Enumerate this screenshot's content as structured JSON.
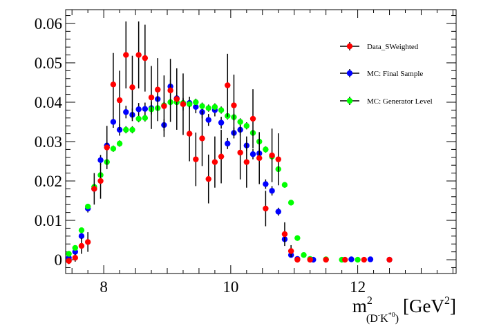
{
  "chart_data": {
    "type": "scatter",
    "title": "",
    "xlabel": {
      "base": "m",
      "superscript": "2",
      "subscript": "(D",
      "subscript_sup1": "-",
      "subscript_mid": "K",
      "subscript_sup2": "*0",
      "subscript_end": ")",
      "unit": "[GeV",
      "unit_sup": "2",
      "unit_end": "]"
    },
    "ylabel": "",
    "xlim": [
      7.4,
      13.55
    ],
    "ylim": [
      -0.0035,
      0.0635
    ],
    "x_ticks": [
      8,
      10,
      12
    ],
    "x_tick_labels": [
      "8",
      "10",
      "12"
    ],
    "y_ticks": [
      0,
      0.01,
      0.02,
      0.03,
      0.04,
      0.05,
      0.06
    ],
    "y_tick_labels": [
      "0",
      "0.01",
      "0.02",
      "0.03",
      "0.04",
      "0.05",
      "0.06"
    ],
    "legend_position": "top-right",
    "grid": false,
    "series": [
      {
        "name": "Data_SWeighted",
        "color": "#ff0000",
        "points": [
          {
            "x": 7.45,
            "y": -0.0003,
            "err": 0.0008
          },
          {
            "x": 7.55,
            "y": 0.0005,
            "err": 0.001
          },
          {
            "x": 7.65,
            "y": 0.0035,
            "err": 0.002
          },
          {
            "x": 7.75,
            "y": 0.0045,
            "err": 0.0025
          },
          {
            "x": 7.85,
            "y": 0.018,
            "err": 0.004
          },
          {
            "x": 7.95,
            "y": 0.02,
            "err": 0.0045
          },
          {
            "x": 8.05,
            "y": 0.0285,
            "err": 0.0055
          },
          {
            "x": 8.15,
            "y": 0.0445,
            "err": 0.008
          },
          {
            "x": 8.25,
            "y": 0.0405,
            "err": 0.0075
          },
          {
            "x": 8.35,
            "y": 0.052,
            "err": 0.0085
          },
          {
            "x": 8.45,
            "y": 0.0438,
            "err": 0.008
          },
          {
            "x": 8.55,
            "y": 0.052,
            "err": 0.0085
          },
          {
            "x": 8.65,
            "y": 0.0512,
            "err": 0.0085
          },
          {
            "x": 8.75,
            "y": 0.0412,
            "err": 0.008
          },
          {
            "x": 8.85,
            "y": 0.0432,
            "err": 0.008
          },
          {
            "x": 8.95,
            "y": 0.039,
            "err": 0.0078
          },
          {
            "x": 9.05,
            "y": 0.043,
            "err": 0.008
          },
          {
            "x": 9.15,
            "y": 0.0408,
            "err": 0.0078
          },
          {
            "x": 9.25,
            "y": 0.0395,
            "err": 0.0078
          },
          {
            "x": 9.35,
            "y": 0.032,
            "err": 0.007
          },
          {
            "x": 9.45,
            "y": 0.0255,
            "err": 0.0068
          },
          {
            "x": 9.55,
            "y": 0.0308,
            "err": 0.007
          },
          {
            "x": 9.65,
            "y": 0.0205,
            "err": 0.0062
          },
          {
            "x": 9.75,
            "y": 0.0248,
            "err": 0.0065
          },
          {
            "x": 9.85,
            "y": 0.0262,
            "err": 0.0068
          },
          {
            "x": 9.95,
            "y": 0.0443,
            "err": 0.008
          },
          {
            "x": 10.05,
            "y": 0.0392,
            "err": 0.0078
          },
          {
            "x": 10.15,
            "y": 0.0272,
            "err": 0.0068
          },
          {
            "x": 10.25,
            "y": 0.0248,
            "err": 0.0065
          },
          {
            "x": 10.35,
            "y": 0.0358,
            "err": 0.0075
          },
          {
            "x": 10.45,
            "y": 0.0258,
            "err": 0.0066
          },
          {
            "x": 10.55,
            "y": 0.013,
            "err": 0.0045
          },
          {
            "x": 10.65,
            "y": 0.0265,
            "err": 0.0068
          },
          {
            "x": 10.75,
            "y": 0.0255,
            "err": 0.0066
          },
          {
            "x": 10.85,
            "y": 0.0065,
            "err": 0.003
          },
          {
            "x": 10.95,
            "y": 0.0022,
            "err": 0.0015
          },
          {
            "x": 11.05,
            "y": 0.0,
            "err": 0.0005
          },
          {
            "x": 11.25,
            "y": 0.0,
            "err": 0.0005
          },
          {
            "x": 11.5,
            "y": 0.0,
            "err": 0.0005
          },
          {
            "x": 11.8,
            "y": 0.0,
            "err": 0.0005
          },
          {
            "x": 12.1,
            "y": 0.0,
            "err": 0.0005
          },
          {
            "x": 12.5,
            "y": 0.0,
            "err": 0.0005
          }
        ]
      },
      {
        "name": "MC: Final Sample",
        "color": "#0000ff",
        "points": [
          {
            "x": 7.45,
            "y": 0.0005,
            "err": 0.0005
          },
          {
            "x": 7.55,
            "y": 0.002,
            "err": 0.0006
          },
          {
            "x": 7.65,
            "y": 0.006,
            "err": 0.0008
          },
          {
            "x": 7.75,
            "y": 0.013,
            "err": 0.001
          },
          {
            "x": 7.85,
            "y": 0.018,
            "err": 0.0012
          },
          {
            "x": 7.95,
            "y": 0.0253,
            "err": 0.0013
          },
          {
            "x": 8.05,
            "y": 0.029,
            "err": 0.0014
          },
          {
            "x": 8.15,
            "y": 0.035,
            "err": 0.0015
          },
          {
            "x": 8.25,
            "y": 0.033,
            "err": 0.0015
          },
          {
            "x": 8.35,
            "y": 0.0375,
            "err": 0.0016
          },
          {
            "x": 8.45,
            "y": 0.0368,
            "err": 0.0016
          },
          {
            "x": 8.55,
            "y": 0.0382,
            "err": 0.0016
          },
          {
            "x": 8.65,
            "y": 0.0383,
            "err": 0.0016
          },
          {
            "x": 8.75,
            "y": 0.0385,
            "err": 0.0016
          },
          {
            "x": 8.85,
            "y": 0.0408,
            "err": 0.0016
          },
          {
            "x": 8.95,
            "y": 0.0342,
            "err": 0.0015
          },
          {
            "x": 9.05,
            "y": 0.044,
            "err": 0.0017
          },
          {
            "x": 9.15,
            "y": 0.041,
            "err": 0.0016
          },
          {
            "x": 9.25,
            "y": 0.0395,
            "err": 0.0016
          },
          {
            "x": 9.35,
            "y": 0.0398,
            "err": 0.0016
          },
          {
            "x": 9.45,
            "y": 0.0388,
            "err": 0.0016
          },
          {
            "x": 9.55,
            "y": 0.0375,
            "err": 0.0016
          },
          {
            "x": 9.65,
            "y": 0.0355,
            "err": 0.0015
          },
          {
            "x": 9.75,
            "y": 0.038,
            "err": 0.0016
          },
          {
            "x": 9.85,
            "y": 0.0348,
            "err": 0.0015
          },
          {
            "x": 9.95,
            "y": 0.0295,
            "err": 0.0014
          },
          {
            "x": 10.05,
            "y": 0.0322,
            "err": 0.0014
          },
          {
            "x": 10.15,
            "y": 0.033,
            "err": 0.0015
          },
          {
            "x": 10.25,
            "y": 0.029,
            "err": 0.0014
          },
          {
            "x": 10.35,
            "y": 0.0268,
            "err": 0.0013
          },
          {
            "x": 10.45,
            "y": 0.027,
            "err": 0.0013
          },
          {
            "x": 10.55,
            "y": 0.0192,
            "err": 0.0012
          },
          {
            "x": 10.65,
            "y": 0.0175,
            "err": 0.0012
          },
          {
            "x": 10.75,
            "y": 0.0122,
            "err": 0.001
          },
          {
            "x": 10.85,
            "y": 0.0052,
            "err": 0.0007
          },
          {
            "x": 10.95,
            "y": 0.0012,
            "err": 0.0004
          },
          {
            "x": 11.05,
            "y": 0.0002,
            "err": 0.0003
          },
          {
            "x": 11.3,
            "y": 0.0,
            "err": 0.0002
          },
          {
            "x": 11.9,
            "y": 0.0001,
            "err": 0.0002
          },
          {
            "x": 12.2,
            "y": 0.0001,
            "err": 0.0002
          },
          {
            "x": 12.5,
            "y": 0.0,
            "err": 0.0002
          }
        ]
      },
      {
        "name": "MC: Generator Level",
        "color": "#00ff00",
        "points": [
          {
            "x": 7.45,
            "y": 0.0015,
            "err": 0.0003
          },
          {
            "x": 7.55,
            "y": 0.003,
            "err": 0.0004
          },
          {
            "x": 7.65,
            "y": 0.0075,
            "err": 0.0005
          },
          {
            "x": 7.75,
            "y": 0.0135,
            "err": 0.0006
          },
          {
            "x": 7.85,
            "y": 0.0185,
            "err": 0.0007
          },
          {
            "x": 7.95,
            "y": 0.0215,
            "err": 0.0007
          },
          {
            "x": 8.05,
            "y": 0.0248,
            "err": 0.0008
          },
          {
            "x": 8.15,
            "y": 0.0282,
            "err": 0.0008
          },
          {
            "x": 8.25,
            "y": 0.0295,
            "err": 0.0008
          },
          {
            "x": 8.35,
            "y": 0.033,
            "err": 0.0009
          },
          {
            "x": 8.45,
            "y": 0.033,
            "err": 0.0009
          },
          {
            "x": 8.55,
            "y": 0.0358,
            "err": 0.0009
          },
          {
            "x": 8.65,
            "y": 0.036,
            "err": 0.0009
          },
          {
            "x": 8.75,
            "y": 0.0382,
            "err": 0.0009
          },
          {
            "x": 8.85,
            "y": 0.0385,
            "err": 0.0009
          },
          {
            "x": 8.95,
            "y": 0.0392,
            "err": 0.0009
          },
          {
            "x": 9.05,
            "y": 0.04,
            "err": 0.0009
          },
          {
            "x": 9.15,
            "y": 0.04,
            "err": 0.0009
          },
          {
            "x": 9.25,
            "y": 0.0398,
            "err": 0.0009
          },
          {
            "x": 9.35,
            "y": 0.0395,
            "err": 0.0009
          },
          {
            "x": 9.45,
            "y": 0.04,
            "err": 0.0009
          },
          {
            "x": 9.55,
            "y": 0.039,
            "err": 0.0009
          },
          {
            "x": 9.65,
            "y": 0.0385,
            "err": 0.0009
          },
          {
            "x": 9.75,
            "y": 0.0388,
            "err": 0.0009
          },
          {
            "x": 9.85,
            "y": 0.038,
            "err": 0.0009
          },
          {
            "x": 9.95,
            "y": 0.0365,
            "err": 0.0009
          },
          {
            "x": 10.05,
            "y": 0.0362,
            "err": 0.0009
          },
          {
            "x": 10.15,
            "y": 0.035,
            "err": 0.0009
          },
          {
            "x": 10.25,
            "y": 0.034,
            "err": 0.0009
          },
          {
            "x": 10.35,
            "y": 0.0322,
            "err": 0.0008
          },
          {
            "x": 10.45,
            "y": 0.03,
            "err": 0.0008
          },
          {
            "x": 10.55,
            "y": 0.028,
            "err": 0.0008
          },
          {
            "x": 10.65,
            "y": 0.0262,
            "err": 0.0008
          },
          {
            "x": 10.75,
            "y": 0.023,
            "err": 0.0007
          },
          {
            "x": 10.85,
            "y": 0.019,
            "err": 0.0007
          },
          {
            "x": 10.95,
            "y": 0.0145,
            "err": 0.0006
          },
          {
            "x": 11.05,
            "y": 0.0055,
            "err": 0.0004
          },
          {
            "x": 11.15,
            "y": 0.0012,
            "err": 0.0003
          },
          {
            "x": 11.25,
            "y": 0.0002,
            "err": 0.0002
          },
          {
            "x": 11.5,
            "y": 0.0001,
            "err": 0.0001
          },
          {
            "x": 11.75,
            "y": 0.0,
            "err": 0.0001
          },
          {
            "x": 12.0,
            "y": 0.0,
            "err": 0.0001
          }
        ]
      }
    ]
  }
}
